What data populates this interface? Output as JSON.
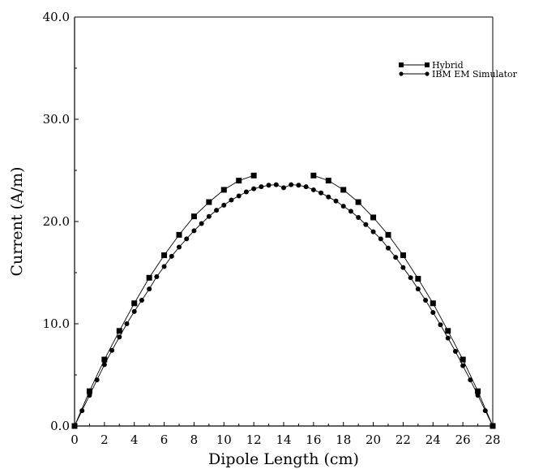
{
  "chart_data": {
    "type": "line",
    "title": "",
    "xlabel": "Dipole Length (cm)",
    "ylabel": "Current (A/m)",
    "xlim": [
      0,
      28
    ],
    "ylim": [
      0,
      40
    ],
    "x_ticks": [
      "0",
      "2",
      "4",
      "6",
      "8",
      "10",
      "12",
      "14",
      "16",
      "18",
      "20",
      "22",
      "24",
      "26",
      "28"
    ],
    "y_ticks": [
      "0.0",
      "10.0",
      "20.0",
      "30.0",
      "40.0"
    ],
    "grid": false,
    "legend_position": "top-right",
    "series": [
      {
        "name": "Hybrid",
        "marker": "square",
        "x": [
          0,
          1,
          2,
          3,
          4,
          5,
          6,
          7,
          8,
          9,
          10,
          11,
          12,
          16,
          17,
          18,
          19,
          20,
          21,
          22,
          23,
          24,
          25,
          26,
          27,
          28
        ],
        "y": [
          0,
          3.4,
          6.5,
          9.3,
          12.0,
          14.5,
          16.7,
          18.7,
          20.5,
          21.9,
          23.1,
          24.0,
          24.5,
          24.5,
          24.0,
          23.1,
          21.9,
          20.4,
          18.7,
          16.7,
          14.4,
          12.0,
          9.3,
          6.5,
          3.4,
          0
        ]
      },
      {
        "name": "IBM EM Simulator",
        "marker": "circle",
        "x": [
          0,
          0.5,
          1,
          1.5,
          2,
          2.5,
          3,
          3.5,
          4,
          4.5,
          5,
          5.5,
          6,
          6.5,
          7,
          7.5,
          8,
          8.5,
          9,
          9.5,
          10,
          10.5,
          11,
          11.5,
          12,
          12.5,
          13,
          13.5,
          14,
          14.5,
          15,
          15.5,
          16,
          16.5,
          17,
          17.5,
          18,
          18.5,
          19,
          19.5,
          20,
          20.5,
          21,
          21.5,
          22,
          22.5,
          23,
          23.5,
          24,
          24.5,
          25,
          25.5,
          26,
          26.5,
          27,
          27.5,
          28
        ],
        "y": [
          0,
          1.5,
          3.0,
          4.5,
          6.0,
          7.4,
          8.7,
          10.0,
          11.2,
          12.3,
          13.4,
          14.6,
          15.6,
          16.6,
          17.5,
          18.3,
          19.1,
          19.8,
          20.5,
          21.1,
          21.6,
          22.1,
          22.5,
          22.9,
          23.2,
          23.4,
          23.55,
          23.6,
          23.3,
          23.6,
          23.55,
          23.4,
          23.1,
          22.8,
          22.4,
          22.0,
          21.5,
          21.0,
          20.4,
          19.7,
          19.0,
          18.3,
          17.4,
          16.5,
          15.5,
          14.5,
          13.4,
          12.3,
          11.1,
          9.9,
          8.6,
          7.3,
          5.9,
          4.5,
          3.0,
          1.5,
          0
        ]
      }
    ]
  }
}
